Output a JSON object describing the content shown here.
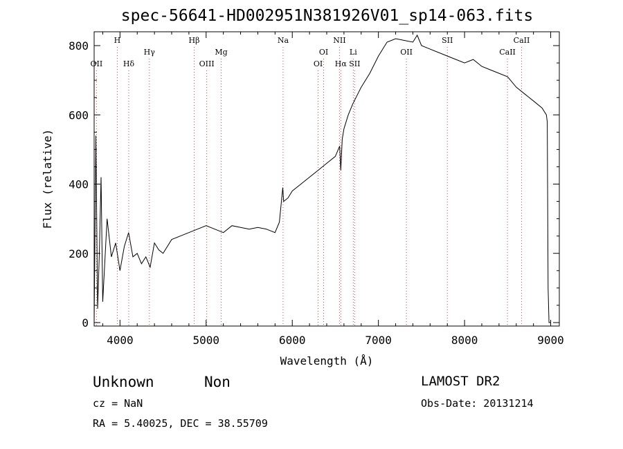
{
  "title": "spec-56641-HD002951N381926V01_sp14-063.fits",
  "classification": "Unknown",
  "subclass": "Non",
  "redshift_text": "cz = NaN",
  "coords_text": "RA =    5.40025, DEC =   38.55709",
  "survey": "LAMOST DR2",
  "obs_date": "Obs-Date: 20131214",
  "colors": {
    "spectrum": "#000000",
    "line_marker": "#d23c3c",
    "axes": "#000000"
  },
  "chart_data": {
    "type": "line",
    "title": "spec-56641-HD002951N381926V01_sp14-063.fits",
    "xlabel": "Wavelength (Å)",
    "ylabel": "Flux (relative)",
    "xlim": [
      3700,
      9100
    ],
    "ylim": [
      -10,
      840
    ],
    "xticks": [
      4000,
      5000,
      6000,
      7000,
      8000,
      9000
    ],
    "yticks": [
      0,
      200,
      400,
      600,
      800
    ],
    "grid": false,
    "series": [
      {
        "x": [
          3700,
          3720,
          3740,
          3760,
          3780,
          3800,
          3850,
          3900,
          3950,
          4000,
          4050,
          4100,
          4150,
          4200,
          4250,
          4300,
          4350,
          4400,
          4450,
          4500,
          4600,
          4700,
          4800,
          4900,
          5000,
          5100,
          5200,
          5300,
          5400,
          5500,
          5600,
          5700,
          5800,
          5850,
          5890,
          5900,
          5950,
          6000,
          6100,
          6200,
          6300,
          6400,
          6500,
          6550,
          6563,
          6580,
          6600,
          6650,
          6700,
          6800,
          6900,
          7000,
          7100,
          7200,
          7300,
          7400,
          7450,
          7500,
          7600,
          7700,
          7800,
          7900,
          8000,
          8100,
          8200,
          8300,
          8400,
          8500,
          8600,
          8700,
          8800,
          8900,
          8950,
          8960,
          8970,
          8980,
          9000
        ],
        "y": [
          0,
          540,
          40,
          200,
          420,
          60,
          300,
          190,
          230,
          150,
          220,
          260,
          190,
          200,
          170,
          190,
          160,
          230,
          210,
          200,
          240,
          250,
          260,
          270,
          280,
          270,
          260,
          280,
          275,
          270,
          275,
          270,
          260,
          290,
          390,
          350,
          360,
          380,
          400,
          420,
          440,
          460,
          480,
          510,
          440,
          530,
          560,
          600,
          630,
          680,
          720,
          770,
          810,
          820,
          815,
          810,
          830,
          800,
          790,
          780,
          770,
          760,
          750,
          760,
          740,
          730,
          720,
          710,
          680,
          660,
          640,
          620,
          600,
          580,
          100,
          0,
          0
        ]
      }
    ],
    "lines": [
      {
        "label": "OII",
        "x": 3727,
        "row": 2
      },
      {
        "label": "H",
        "x": 3969,
        "row": 0
      },
      {
        "label": "Hδ",
        "x": 4102,
        "row": 2
      },
      {
        "label": "Hγ",
        "x": 4341,
        "row": 1
      },
      {
        "label": "Hβ",
        "x": 4861,
        "row": 0
      },
      {
        "label": "OIII",
        "x": 5007,
        "row": 2
      },
      {
        "label": "Mg",
        "x": 5175,
        "row": 1
      },
      {
        "label": "Na",
        "x": 5893,
        "row": 0
      },
      {
        "label": "OI",
        "x": 6300,
        "row": 2
      },
      {
        "label": "OI",
        "x": 6364,
        "row": 1
      },
      {
        "label": "NII",
        "x": 6548,
        "row": 0
      },
      {
        "label": "Hα",
        "x": 6563,
        "row": 2
      },
      {
        "label": "Li",
        "x": 6708,
        "row": 1
      },
      {
        "label": "SII",
        "x": 6724,
        "row": 2
      },
      {
        "label": "OII",
        "x": 7325,
        "row": 1
      },
      {
        "label": "SII",
        "x": 7800,
        "row": 0
      },
      {
        "label": "CaII",
        "x": 8498,
        "row": 1
      },
      {
        "label": "CaII",
        "x": 8662,
        "row": 0
      }
    ]
  }
}
